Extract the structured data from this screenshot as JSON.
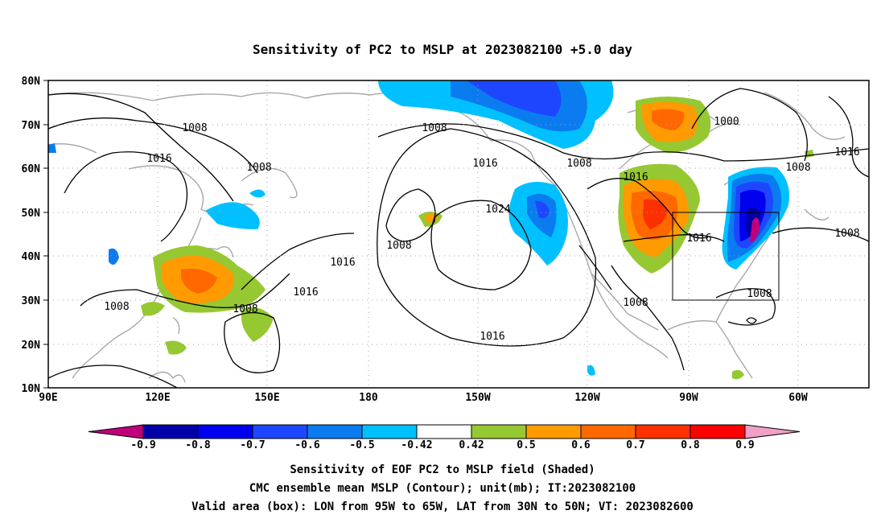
{
  "title": "Sensitivity of PC2 to MSLP at 2023082100 +5.0 day",
  "map": {
    "lat_labels": [
      "80N",
      "70N",
      "60N",
      "50N",
      "40N",
      "30N",
      "20N",
      "10N"
    ],
    "lon_labels": [
      "90E",
      "120E",
      "150E",
      "180",
      "150W",
      "120W",
      "90W",
      "60W"
    ],
    "contour_labels": [
      "1008",
      "1016",
      "1008",
      "1008",
      "1016",
      "1008",
      "1016",
      "1024",
      "1008",
      "1016",
      "1008",
      "1016",
      "1000",
      "1016",
      "1008",
      "1016",
      "1008",
      "1016",
      "1008",
      "1008",
      "1008"
    ],
    "valid_box": {
      "lon_from": "95W",
      "lon_to": "65W",
      "lat_from": "30N",
      "lat_to": "50N"
    }
  },
  "colorbar": {
    "labels": [
      "-0.9",
      "-0.8",
      "-0.7",
      "-0.6",
      "-0.5",
      "-0.42",
      "0.42",
      "0.5",
      "0.6",
      "0.7",
      "0.8",
      "0.9"
    ],
    "colors": [
      "#c0007a",
      "#0000a8",
      "#0000f0",
      "#1e46ff",
      "#0a7cf0",
      "#00c0ff",
      "#ffffff",
      "#96c832",
      "#ff9a00",
      "#ff6800",
      "#ff3000",
      "#ff0000",
      "#f0a0c8"
    ]
  },
  "captions": {
    "line1": "Sensitivity of EOF PC2 to MSLP field (Shaded)",
    "line2": "CMC ensemble mean MSLP (Contour); unit(mb); IT:2023082100",
    "line3": "Valid area (box): LON from 95W to 65W, LAT from 30N to 50N; VT: 2023082600"
  }
}
